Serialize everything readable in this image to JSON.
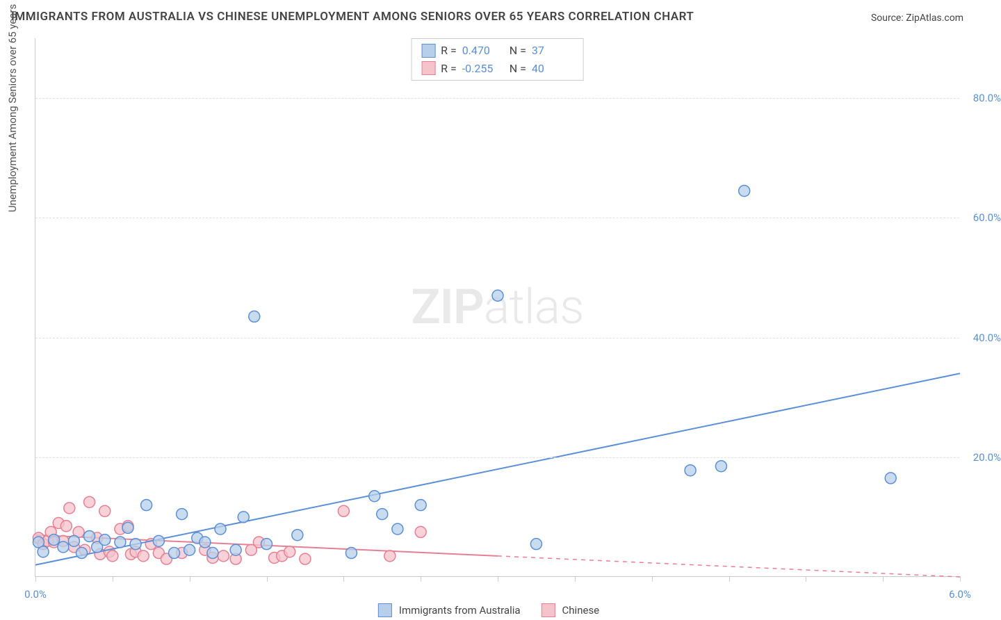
{
  "title": "IMMIGRANTS FROM AUSTRALIA VS CHINESE UNEMPLOYMENT AMONG SENIORS OVER 65 YEARS CORRELATION CHART",
  "source_label": "Source: ",
  "source_value": "ZipAtlas.com",
  "y_axis_title": "Unemployment Among Seniors over 65 years",
  "watermark_part1": "ZIP",
  "watermark_part2": "atlas",
  "chart": {
    "type": "scatter",
    "xlim": [
      0.0,
      6.0
    ],
    "ylim": [
      0.0,
      90.0
    ],
    "x_ticks": [
      0.0,
      0.5,
      1.0,
      1.5,
      2.0,
      2.5,
      3.0,
      3.5,
      4.0,
      4.5,
      5.0,
      5.5,
      6.0
    ],
    "x_tick_labels": {
      "0.0": "0.0%",
      "6.0": "6.0%"
    },
    "y_ticks": [
      20.0,
      40.0,
      60.0,
      80.0
    ],
    "y_tick_labels": [
      "20.0%",
      "40.0%",
      "60.0%",
      "80.0%"
    ],
    "grid_color": "#e0e0e0",
    "background_color": "#ffffff",
    "axis_color": "#cccccc",
    "tick_label_color": "#5b8fd6",
    "marker_radius": 8,
    "marker_stroke_width": 1.5,
    "trend_line_width": 2,
    "trend_dash": "6,6"
  },
  "series": [
    {
      "name": "Immigrants from Australia",
      "fill_color": "#b7cfea",
      "stroke_color": "#5b8fd6",
      "r_value": "0.470",
      "n_value": "37",
      "trend_solid": {
        "x1": 0.0,
        "y1": 2.0,
        "x2": 6.0,
        "y2": 34.0
      },
      "data": [
        [
          0.02,
          5.8
        ],
        [
          0.05,
          4.2
        ],
        [
          0.12,
          6.2
        ],
        [
          0.18,
          5.0
        ],
        [
          0.25,
          6.0
        ],
        [
          0.3,
          4.0
        ],
        [
          0.35,
          6.8
        ],
        [
          0.4,
          5.0
        ],
        [
          0.45,
          6.2
        ],
        [
          0.55,
          5.8
        ],
        [
          0.6,
          8.2
        ],
        [
          0.65,
          5.5
        ],
        [
          0.72,
          12.0
        ],
        [
          0.8,
          6.0
        ],
        [
          0.9,
          4.0
        ],
        [
          0.95,
          10.5
        ],
        [
          1.0,
          4.5
        ],
        [
          1.05,
          6.5
        ],
        [
          1.1,
          5.8
        ],
        [
          1.15,
          4.0
        ],
        [
          1.2,
          8.0
        ],
        [
          1.3,
          4.5
        ],
        [
          1.35,
          10.0
        ],
        [
          1.42,
          43.5
        ],
        [
          1.5,
          5.5
        ],
        [
          1.7,
          7.0
        ],
        [
          2.05,
          4.0
        ],
        [
          2.2,
          13.5
        ],
        [
          2.25,
          10.5
        ],
        [
          2.35,
          8.0
        ],
        [
          2.5,
          12.0
        ],
        [
          3.0,
          47.0
        ],
        [
          3.25,
          5.5
        ],
        [
          4.25,
          17.8
        ],
        [
          4.45,
          18.5
        ],
        [
          4.6,
          64.5
        ],
        [
          5.55,
          16.5
        ]
      ]
    },
    {
      "name": "Chinese",
      "fill_color": "#f6c3cb",
      "stroke_color": "#e57f93",
      "r_value": "-0.255",
      "n_value": "40",
      "trend_solid": {
        "x1": 0.0,
        "y1": 7.0,
        "x2": 3.0,
        "y2": 3.5
      },
      "trend_dash": {
        "x1": 3.0,
        "y1": 3.5,
        "x2": 6.0,
        "y2": 0.0
      },
      "data": [
        [
          0.02,
          6.5
        ],
        [
          0.05,
          5.5
        ],
        [
          0.08,
          6.0
        ],
        [
          0.1,
          7.5
        ],
        [
          0.12,
          5.8
        ],
        [
          0.15,
          9.0
        ],
        [
          0.18,
          6.0
        ],
        [
          0.2,
          8.5
        ],
        [
          0.22,
          11.5
        ],
        [
          0.25,
          5.0
        ],
        [
          0.28,
          7.5
        ],
        [
          0.32,
          4.5
        ],
        [
          0.35,
          12.5
        ],
        [
          0.4,
          6.5
        ],
        [
          0.42,
          3.8
        ],
        [
          0.45,
          11.0
        ],
        [
          0.48,
          4.2
        ],
        [
          0.5,
          3.5
        ],
        [
          0.55,
          8.0
        ],
        [
          0.6,
          8.5
        ],
        [
          0.62,
          3.8
        ],
        [
          0.65,
          4.2
        ],
        [
          0.7,
          3.5
        ],
        [
          0.75,
          5.5
        ],
        [
          0.8,
          4.0
        ],
        [
          0.85,
          3.0
        ],
        [
          0.95,
          4.0
        ],
        [
          1.1,
          4.5
        ],
        [
          1.15,
          3.2
        ],
        [
          1.22,
          3.5
        ],
        [
          1.3,
          3.0
        ],
        [
          1.4,
          4.5
        ],
        [
          1.45,
          5.8
        ],
        [
          1.55,
          3.2
        ],
        [
          1.6,
          3.5
        ],
        [
          1.65,
          4.2
        ],
        [
          1.75,
          3.0
        ],
        [
          2.0,
          11.0
        ],
        [
          2.3,
          3.5
        ],
        [
          2.5,
          7.5
        ]
      ]
    }
  ],
  "stats_labels": {
    "r": "R =",
    "n": "N ="
  },
  "bottom_legend": [
    {
      "label": "Immigrants from Australia",
      "swatch_fill": "#b7cfea",
      "swatch_stroke": "#5b8fd6"
    },
    {
      "label": "Chinese",
      "swatch_fill": "#f6c3cb",
      "swatch_stroke": "#e57f93"
    }
  ]
}
